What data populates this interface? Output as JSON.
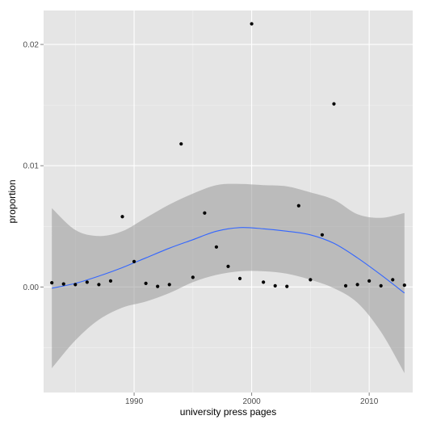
{
  "chart_data": {
    "type": "scatter",
    "xlabel": "university press pages",
    "ylabel": "proportion",
    "xlim": [
      1982.3,
      2013.7
    ],
    "ylim": [
      -0.0087,
      0.0228
    ],
    "x_ticks": [
      1990,
      2000,
      2010
    ],
    "x_tick_labels": [
      "1990",
      "2000",
      "2010"
    ],
    "y_ticks": [
      0.0,
      0.01,
      0.02
    ],
    "y_tick_labels": [
      "0.00",
      "0.01",
      "0.02"
    ],
    "grid": true,
    "colors": {
      "panel": "#e5e5e5",
      "grid_major": "#ffffff",
      "grid_minor": "#f2f2f2",
      "points": "#000000",
      "smooth_line": "#3366ff",
      "confidence_band": "#999999"
    },
    "points": [
      {
        "x": 1983,
        "y": 0.00035
      },
      {
        "x": 1984,
        "y": 0.00025
      },
      {
        "x": 1985,
        "y": 0.0002
      },
      {
        "x": 1986,
        "y": 0.0004
      },
      {
        "x": 1987,
        "y": 0.0002
      },
      {
        "x": 1988,
        "y": 0.0005
      },
      {
        "x": 1989,
        "y": 0.0058
      },
      {
        "x": 1990,
        "y": 0.0021
      },
      {
        "x": 1991,
        "y": 0.0003
      },
      {
        "x": 1992,
        "y": 5e-05
      },
      {
        "x": 1993,
        "y": 0.0002
      },
      {
        "x": 1994,
        "y": 0.0118
      },
      {
        "x": 1995,
        "y": 0.0008
      },
      {
        "x": 1996,
        "y": 0.0061
      },
      {
        "x": 1997,
        "y": 0.0033
      },
      {
        "x": 1998,
        "y": 0.0017
      },
      {
        "x": 1999,
        "y": 0.0007
      },
      {
        "x": 2000,
        "y": 0.0217
      },
      {
        "x": 2001,
        "y": 0.0004
      },
      {
        "x": 2002,
        "y": 0.0001
      },
      {
        "x": 2003,
        "y": 5e-05
      },
      {
        "x": 2004,
        "y": 0.0067
      },
      {
        "x": 2005,
        "y": 0.0006
      },
      {
        "x": 2006,
        "y": 0.0043
      },
      {
        "x": 2007,
        "y": 0.0151
      },
      {
        "x": 2008,
        "y": 0.0001
      },
      {
        "x": 2009,
        "y": 0.0002
      },
      {
        "x": 2010,
        "y": 0.0005
      },
      {
        "x": 2011,
        "y": 0.0001
      },
      {
        "x": 2012,
        "y": 0.0006
      },
      {
        "x": 2013,
        "y": 0.00015
      }
    ],
    "smooth": [
      {
        "x": 1983,
        "y": -0.0001,
        "ymin": -0.0067,
        "ymax": 0.0065
      },
      {
        "x": 1985,
        "y": 0.0003,
        "ymin": -0.0044,
        "ymax": 0.0047
      },
      {
        "x": 1987,
        "y": 0.0009,
        "ymin": -0.0027,
        "ymax": 0.0042
      },
      {
        "x": 1989,
        "y": 0.0016,
        "ymin": -0.0017,
        "ymax": 0.0046
      },
      {
        "x": 1991,
        "y": 0.0024,
        "ymin": -0.0012,
        "ymax": 0.0057
      },
      {
        "x": 1993,
        "y": 0.0032,
        "ymin": -0.0005,
        "ymax": 0.0068
      },
      {
        "x": 1995,
        "y": 0.0039,
        "ymin": 0.0004,
        "ymax": 0.0077
      },
      {
        "x": 1997,
        "y": 0.0046,
        "ymin": 0.001,
        "ymax": 0.0084
      },
      {
        "x": 1999,
        "y": 0.0049,
        "ymin": 0.0013,
        "ymax": 0.0085
      },
      {
        "x": 2001,
        "y": 0.0048,
        "ymin": 0.0013,
        "ymax": 0.0084
      },
      {
        "x": 2003,
        "y": 0.0046,
        "ymin": 0.0011,
        "ymax": 0.0083
      },
      {
        "x": 2005,
        "y": 0.0043,
        "ymin": 0.0006,
        "ymax": 0.0078
      },
      {
        "x": 2007,
        "y": 0.0036,
        "ymin": -0.0001,
        "ymax": 0.0072
      },
      {
        "x": 2009,
        "y": 0.0024,
        "ymin": -0.0013,
        "ymax": 0.006
      },
      {
        "x": 2011,
        "y": 0.001,
        "ymin": -0.0037,
        "ymax": 0.0057
      },
      {
        "x": 2013,
        "y": -0.0005,
        "ymin": -0.0071,
        "ymax": 0.0061
      }
    ]
  }
}
